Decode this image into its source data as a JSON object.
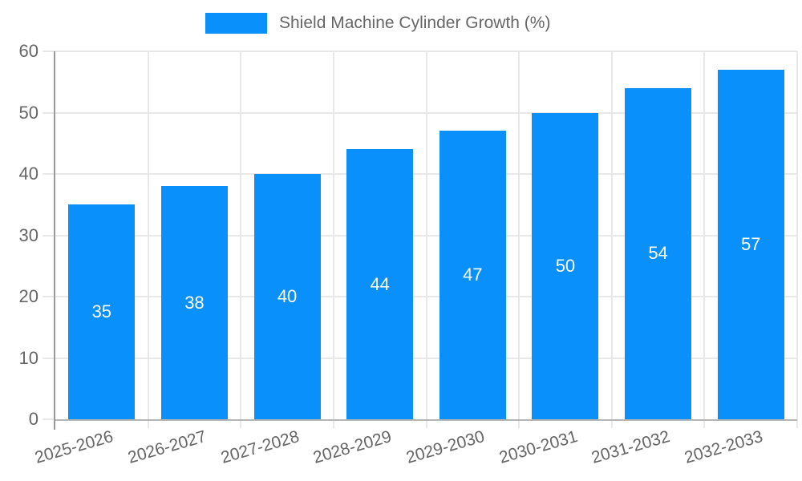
{
  "legend": {
    "label": "Shield Machine Cylinder Growth (%)"
  },
  "chart_data": {
    "type": "bar",
    "title": "",
    "series_name": "Shield Machine Cylinder Growth (%)",
    "categories": [
      "2025-2026",
      "2026-2027",
      "2027-2028",
      "2028-2029",
      "2029-2030",
      "2030-2031",
      "2031-2032",
      "2032-2033"
    ],
    "values": [
      35,
      38,
      40,
      44,
      47,
      50,
      54,
      57
    ],
    "value_labels": [
      "35",
      "38",
      "40",
      "44",
      "47",
      "50",
      "54",
      "57"
    ],
    "xlabel": "",
    "ylabel": "",
    "ylim": [
      0,
      60
    ],
    "ytick_labels": [
      "0",
      "10",
      "20",
      "30",
      "40",
      "50",
      "60"
    ],
    "ytick_step": 10,
    "grid": "on",
    "legend_position": "top-center",
    "x_label_rotation_deg": -16
  },
  "colors": {
    "bar": "#0990FB",
    "value_label": "#FFFFFF",
    "grid_line": "#E8E8E8",
    "y_axis_line": "#999999",
    "x_axis_line": "#B5B5B5",
    "tick_label": "#666666",
    "legend_text": "#666666",
    "background": "#FFFFFF"
  }
}
